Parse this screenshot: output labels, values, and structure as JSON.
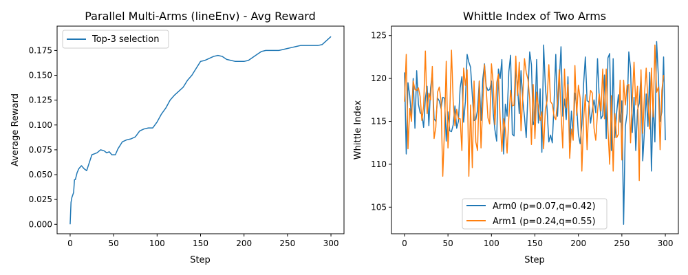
{
  "chart_data": [
    {
      "type": "line",
      "title": "Parallel Multi-Arms (lineEnv) - Avg Reward",
      "xlabel": "Step",
      "ylabel": "Average Reward",
      "xlim": [
        -15,
        315
      ],
      "ylim": [
        -0.0095,
        0.1995
      ],
      "xticks": [
        0,
        50,
        100,
        150,
        200,
        250,
        300
      ],
      "xtick_labels": [
        "0",
        "50",
        "100",
        "150",
        "200",
        "250",
        "300"
      ],
      "yticks": [
        0.0,
        0.025,
        0.05,
        0.075,
        0.1,
        0.125,
        0.15,
        0.175
      ],
      "ytick_labels": [
        "0.000",
        "0.025",
        "0.050",
        "0.075",
        "0.100",
        "0.125",
        "0.150",
        "0.175"
      ],
      "grid": false,
      "legend_position": "upper-left",
      "series": [
        {
          "name": "Top-3 selection",
          "color": "#1f77b4",
          "x": [
            0,
            1,
            2,
            4,
            5,
            6,
            8,
            10,
            13,
            16,
            19,
            22,
            25,
            28,
            31,
            35,
            39,
            42,
            45,
            48,
            52,
            55,
            60,
            65,
            70,
            75,
            80,
            85,
            90,
            95,
            100,
            105,
            110,
            115,
            120,
            125,
            130,
            135,
            140,
            145,
            150,
            155,
            160,
            165,
            170,
            175,
            180,
            185,
            190,
            195,
            200,
            205,
            210,
            215,
            220,
            225,
            230,
            235,
            240,
            245,
            250,
            255,
            260,
            265,
            270,
            275,
            280,
            285,
            290,
            295,
            300
          ],
          "values": [
            0.0,
            0.022,
            0.027,
            0.032,
            0.045,
            0.045,
            0.052,
            0.056,
            0.059,
            0.056,
            0.054,
            0.062,
            0.07,
            0.071,
            0.072,
            0.075,
            0.074,
            0.072,
            0.073,
            0.07,
            0.07,
            0.076,
            0.083,
            0.085,
            0.086,
            0.088,
            0.094,
            0.096,
            0.097,
            0.097,
            0.103,
            0.111,
            0.117,
            0.125,
            0.13,
            0.134,
            0.138,
            0.145,
            0.15,
            0.157,
            0.164,
            0.165,
            0.167,
            0.169,
            0.17,
            0.169,
            0.166,
            0.165,
            0.164,
            0.164,
            0.164,
            0.165,
            0.168,
            0.171,
            0.174,
            0.175,
            0.175,
            0.175,
            0.175,
            0.176,
            0.177,
            0.178,
            0.179,
            0.18,
            0.18,
            0.18,
            0.18,
            0.18,
            0.181,
            0.185,
            0.189
          ]
        }
      ]
    },
    {
      "type": "line",
      "title": "Whittle Index of Two Arms",
      "xlabel": "Step",
      "ylabel": "Whittle Index",
      "xlim": [
        -15,
        315
      ],
      "ylim": [
        101.9,
        126.1
      ],
      "xticks": [
        0,
        50,
        100,
        150,
        200,
        250,
        300
      ],
      "xtick_labels": [
        "0",
        "50",
        "100",
        "150",
        "200",
        "250",
        "300"
      ],
      "yticks": [
        105,
        110,
        115,
        120,
        125
      ],
      "ytick_labels": [
        "105",
        "110",
        "115",
        "120",
        "125"
      ],
      "grid": false,
      "legend_position": "lower-center",
      "series": [
        {
          "name": "Arm0 (p=0.07,q=0.42)",
          "color": "#1f77b4",
          "x_start": 0,
          "x_step": 2,
          "values": [
            120.7,
            111.2,
            119.5,
            118.0,
            115.4,
            120.0,
            114.2,
            120.9,
            117.0,
            116.0,
            115.8,
            114.3,
            117.7,
            119.1,
            114.5,
            118.9,
            120.6,
            115.3,
            115.0,
            117.7,
            117.4,
            116.5,
            117.8,
            117.7,
            112.7,
            116.1,
            113.9,
            113.8,
            114.6,
            116.8,
            114.2,
            115.0,
            118.9,
            120.2,
            114.9,
            117.3,
            122.8,
            121.9,
            121.3,
            118.0,
            115.1,
            115.2,
            116.3,
            119.7,
            115.1,
            119.9,
            121.7,
            119.1,
            118.6,
            118.7,
            119.7,
            116.0,
            114.0,
            112.7,
            121.1,
            120.0,
            122.2,
            111.2,
            117.0,
            115.6,
            120.8,
            122.7,
            113.5,
            113.3,
            121.5,
            119.0,
            115.9,
            120.9,
            117.5,
            115.5,
            113.1,
            118.4,
            123.1,
            121.6,
            114.6,
            115.2,
            122.2,
            114.8,
            118.8,
            111.4,
            123.9,
            119.1,
            116.4,
            112.6,
            113.4,
            112.5,
            117.1,
            122.8,
            115.6,
            119.7,
            123.7,
            115.6,
            117.6,
            115.2,
            120.2,
            112.5,
            116.2,
            113.5,
            118.3,
            116.8,
            113.5,
            112.4,
            114.7,
            119.4,
            122.5,
            117.4,
            117.3,
            114.8,
            116.3,
            117.5,
            116.0,
            122.3,
            117.7,
            115.3,
            115.7,
            120.4,
            113.0,
            122.4,
            122.9,
            111.6,
            122.3,
            113.1,
            116.0,
            118.1,
            114.9,
            117.4,
            103.0,
            114.4,
            115.9,
            123.1,
            121.2,
            113.7,
            117.8,
            111.6,
            116.3,
            117.1,
            120.3,
            110.4,
            113.9,
            118.2,
            114.4,
            120.7,
            109.2,
            117.2,
            112.6,
            124.3,
            120.2,
            115.0,
            116.1,
            122.5,
            112.8
          ]
        },
        {
          "name": "Arm1 (p=0.24,q=0.55)",
          "color": "#ff7f0e",
          "x_start": 0,
          "x_step": 2,
          "values": [
            117.3,
            122.8,
            111.8,
            116.5,
            115.0,
            119.7,
            118.7,
            118.6,
            118.9,
            117.9,
            115.1,
            116.8,
            123.2,
            115.9,
            118.3,
            117.5,
            121.4,
            113.0,
            114.3,
            118.4,
            119.0,
            117.4,
            108.6,
            114.1,
            122.0,
            111.9,
            115.8,
            123.3,
            117.3,
            114.5,
            116.4,
            115.3,
            115.3,
            111.6,
            121.2,
            119.2,
            121.0,
            108.6,
            116.9,
            109.6,
            119.7,
            112.6,
            111.6,
            119.7,
            111.9,
            116.9,
            121.6,
            118.7,
            115.4,
            114.7,
            121.7,
            119.5,
            114.6,
            119.5,
            120.5,
            115.3,
            111.5,
            115.3,
            114.1,
            111.3,
            115.4,
            118.6,
            116.8,
            116.9,
            122.6,
            118.0,
            121.9,
            113.9,
            117.9,
            122.3,
            120.7,
            119.9,
            117.6,
            112.3,
            119.3,
            113.0,
            118.4,
            116.6,
            115.1,
            116.1,
            111.8,
            116.4,
            117.4,
            121.6,
            117.3,
            117.0,
            115.6,
            115.2,
            117.3,
            121.0,
            116.1,
            111.9,
            121.1,
            116.6,
            119.3,
            110.7,
            114.1,
            112.8,
            121.5,
            115.7,
            119.2,
            117.7,
            109.2,
            115.3,
            118.1,
            111.7,
            116.8,
            118.6,
            118.3,
            114.2,
            112.8,
            116.1,
            118.2,
            116.2,
            121.1,
            115.3,
            121.1,
            114.1,
            110.0,
            118.0,
            109.2,
            115.9,
            113.1,
            113.5,
            119.8,
            110.5,
            119.8,
            116.9,
            119.2,
            119.3,
            112.5,
            117.5,
            121.9,
            116.9,
            119.1,
            108.1,
            121.0,
            113.6,
            118.1,
            121.2,
            117.3,
            114.1,
            121.2,
            115.5,
            123.9,
            118.4,
            119.0,
            111.7,
            118.6,
            120.4
          ]
        }
      ]
    }
  ]
}
